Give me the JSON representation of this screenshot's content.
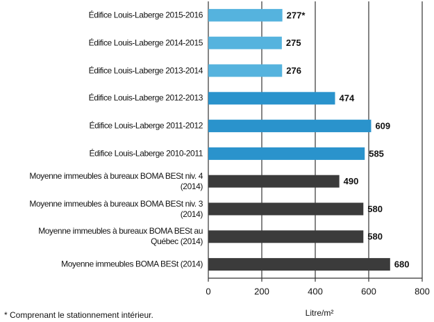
{
  "chart_data": {
    "type": "hbar",
    "categories": [
      "Édifice Louis-Laberge 2015-2016",
      "Édifice Louis-Laberge 2014-2015",
      "Édifice Louis-Laberge 2013-2014",
      "Édifice Louis-Laberge 2012-2013",
      "Édifice Louis-Laberge 2011-2012",
      "Édifice Louis-Laberge 2010-2011",
      "Moyenne immeubles à bureaux BOMA BESt niv. 4\n(2014)",
      "Moyenne immeubles à bureaux BOMA BESt niv. 3\n(2014)",
      "Moyenne immeubles à bureaux BOMA BESt au\nQuébec (2014)",
      "Moyenne immeubles BOMA BESt (2014)"
    ],
    "values": [
      277,
      275,
      276,
      474,
      609,
      585,
      490,
      580,
      580,
      680
    ],
    "value_labels": [
      "277*",
      "275",
      "276",
      "474",
      "609",
      "585",
      "490",
      "580",
      "580",
      "680"
    ],
    "colors": [
      "#55b3de",
      "#55b3de",
      "#55b3de",
      "#2a93cc",
      "#2a93cc",
      "#2a93cc",
      "#3b3b3b",
      "#3b3b3b",
      "#3b3b3b",
      "#3b3b3b"
    ],
    "xlim": [
      0,
      800
    ],
    "xticks": [
      0,
      200,
      400,
      600,
      800
    ],
    "grid": true,
    "xlabel": "Litre/m²",
    "footnote": "* Comprenant le stationnement intérieur."
  }
}
